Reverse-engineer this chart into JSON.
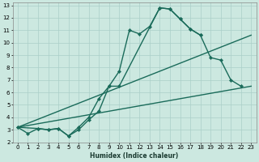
{
  "xlabel": "Humidex (Indice chaleur)",
  "bg_color": "#cce8e0",
  "grid_color": "#aacfc8",
  "line_color": "#1a6b5a",
  "xlim": [
    -0.5,
    23.5
  ],
  "ylim": [
    2,
    13.2
  ],
  "xticks": [
    0,
    1,
    2,
    3,
    4,
    5,
    6,
    7,
    8,
    9,
    10,
    11,
    12,
    13,
    14,
    15,
    16,
    17,
    18,
    19,
    20,
    21,
    22,
    23
  ],
  "yticks": [
    2,
    3,
    4,
    5,
    6,
    7,
    8,
    9,
    10,
    11,
    12,
    13
  ],
  "series": [
    {
      "x": [
        0,
        1,
        2,
        3,
        4,
        5,
        6,
        7,
        8,
        9,
        10,
        11,
        12,
        13,
        14,
        15,
        16,
        17,
        18
      ],
      "y": [
        3.2,
        2.7,
        3.1,
        3.0,
        3.1,
        2.5,
        3.0,
        3.8,
        4.5,
        6.5,
        7.7,
        11.0,
        10.7,
        11.3,
        12.8,
        12.7,
        11.9,
        11.1,
        10.6
      ],
      "marker": true,
      "lw": 1.0
    },
    {
      "x": [
        0,
        2,
        3,
        4,
        5,
        6,
        7,
        8,
        9,
        10,
        14,
        15,
        16,
        17,
        18,
        19,
        20,
        21,
        22
      ],
      "y": [
        3.2,
        3.1,
        3.0,
        3.1,
        2.5,
        3.2,
        4.0,
        5.5,
        6.5,
        6.5,
        12.8,
        12.7,
        11.9,
        11.1,
        10.6,
        8.8,
        8.6,
        7.0,
        6.5
      ],
      "marker": true,
      "lw": 1.0
    },
    {
      "x": [
        0,
        23
      ],
      "y": [
        3.2,
        10.6
      ],
      "marker": false,
      "lw": 1.0
    },
    {
      "x": [
        0,
        23
      ],
      "y": [
        3.2,
        6.5
      ],
      "marker": false,
      "lw": 1.0
    }
  ]
}
